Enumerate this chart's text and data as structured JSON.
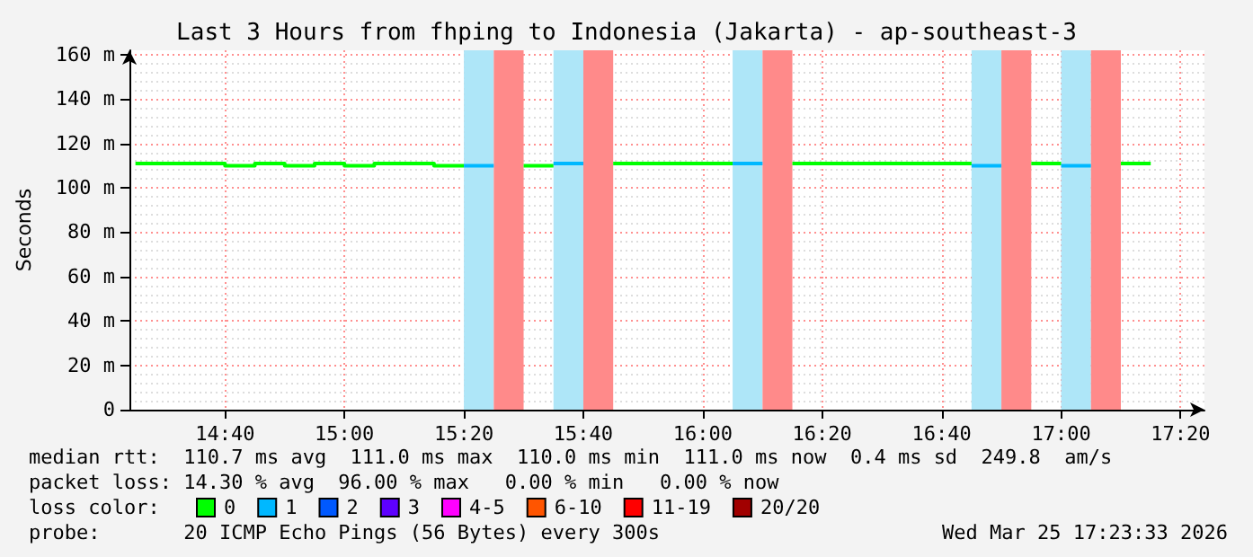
{
  "chart_data": {
    "type": "step",
    "title": "Last 3 Hours from fhping to Indonesia (Jakarta) - ap-southeast-3",
    "ylabel": "Seconds",
    "legend_title": "loss color:",
    "xlim": [
      14.4,
      17.4
    ],
    "xticks": [
      {
        "value": 14.6667,
        "label": "14:40"
      },
      {
        "value": 15,
        "label": "15:00"
      },
      {
        "value": 15.3333,
        "label": "15:20"
      },
      {
        "value": 15.6667,
        "label": "15:40"
      },
      {
        "value": 16,
        "label": "16:00"
      },
      {
        "value": 16.3333,
        "label": "16:20"
      },
      {
        "value": 16.6667,
        "label": "16:40"
      },
      {
        "value": 17,
        "label": "17:00"
      },
      {
        "value": 17.3333,
        "label": "17:20"
      }
    ],
    "ylim": [
      0,
      162
    ],
    "yticks": [
      0,
      {
        "value": 20,
        "label": "20 m"
      },
      {
        "value": 40,
        "label": "40 m"
      },
      {
        "value": 60,
        "label": "60 m"
      },
      {
        "value": 80,
        "label": "80 m"
      },
      {
        "value": 100,
        "label": "100 m"
      },
      {
        "value": 120,
        "label": "120 m"
      },
      {
        "value": 140,
        "label": "140 m"
      },
      {
        "value": 160,
        "label": "160 m"
      }
    ],
    "grid": true,
    "legend": "bottom left",
    "series": [
      {
        "name": "0",
        "color": "#00ff00",
        "x": [
          14.4167,
          14.6667,
          14.75,
          14.8333,
          14.9167,
          15,
          15.0833,
          15.25,
          15.3333,
          null,
          15.5,
          15.5833,
          null,
          15.75,
          16.0833,
          null,
          16.25,
          16.75,
          null,
          16.9167,
          17,
          null,
          17.1667,
          17.25
        ],
        "values": [
          111,
          110,
          111,
          110,
          111,
          110,
          111,
          110,
          110,
          null,
          110,
          110,
          null,
          111,
          111,
          null,
          111,
          111,
          null,
          111,
          111,
          null,
          111,
          111
        ]
      },
      {
        "name": "1",
        "color": "#00b8ff",
        "x": [
          15.3333,
          15.4167,
          null,
          15.5833,
          15.6667,
          null,
          16.0833,
          16.1667,
          null,
          16.75,
          16.8333,
          null,
          17,
          17.0833
        ],
        "values": [
          110,
          110,
          null,
          111,
          111,
          null,
          111,
          111,
          null,
          110,
          110,
          null,
          110,
          110
        ]
      },
      {
        "name": "2",
        "color": "#0059ff"
      },
      {
        "name": "3",
        "color": "#5e00ff"
      },
      {
        "name": "4-5",
        "color": "#ff00ff"
      },
      {
        "name": "6-10",
        "color": "#ff5500"
      },
      {
        "name": "11-19",
        "color": "#ff0000"
      },
      {
        "name": "20/20",
        "color": "#a10000"
      }
    ],
    "bands": [
      {
        "axis": "x",
        "from": 15.3333,
        "to": 15.4167,
        "color": "#aee6f8"
      },
      {
        "axis": "x",
        "from": 15.4167,
        "to": 15.5,
        "color": "#ff8a8a"
      },
      {
        "axis": "x",
        "from": 15.5833,
        "to": 15.6667,
        "color": "#aee6f8"
      },
      {
        "axis": "x",
        "from": 15.6667,
        "to": 15.75,
        "color": "#ff8a8a"
      },
      {
        "axis": "x",
        "from": 16.0833,
        "to": 16.1667,
        "color": "#aee6f8"
      },
      {
        "axis": "x",
        "from": 16.1667,
        "to": 16.25,
        "color": "#ff8a8a"
      },
      {
        "axis": "x",
        "from": 16.75,
        "to": 16.8333,
        "color": "#aee6f8"
      },
      {
        "axis": "x",
        "from": 16.8333,
        "to": 16.9167,
        "color": "#ff8a8a"
      },
      {
        "axis": "x",
        "from": 17,
        "to": 17.0833,
        "color": "#aee6f8"
      },
      {
        "axis": "x",
        "from": 17.0833,
        "to": 17.1667,
        "color": "#ff8a8a"
      }
    ],
    "annotations": [
      "median rtt:  110.7 ms avg  111.0 ms max  110.0 ms min  111.0 ms now  0.4 ms sd  249.8  am/s",
      "packet loss: 14.30 % avg  96.00 % max   0.00 % min   0.00 % now",
      "probe:       20 ICMP Echo Pings (56 Bytes) every 300s",
      "Wed Mar 25 17:23:33 2026"
    ]
  }
}
